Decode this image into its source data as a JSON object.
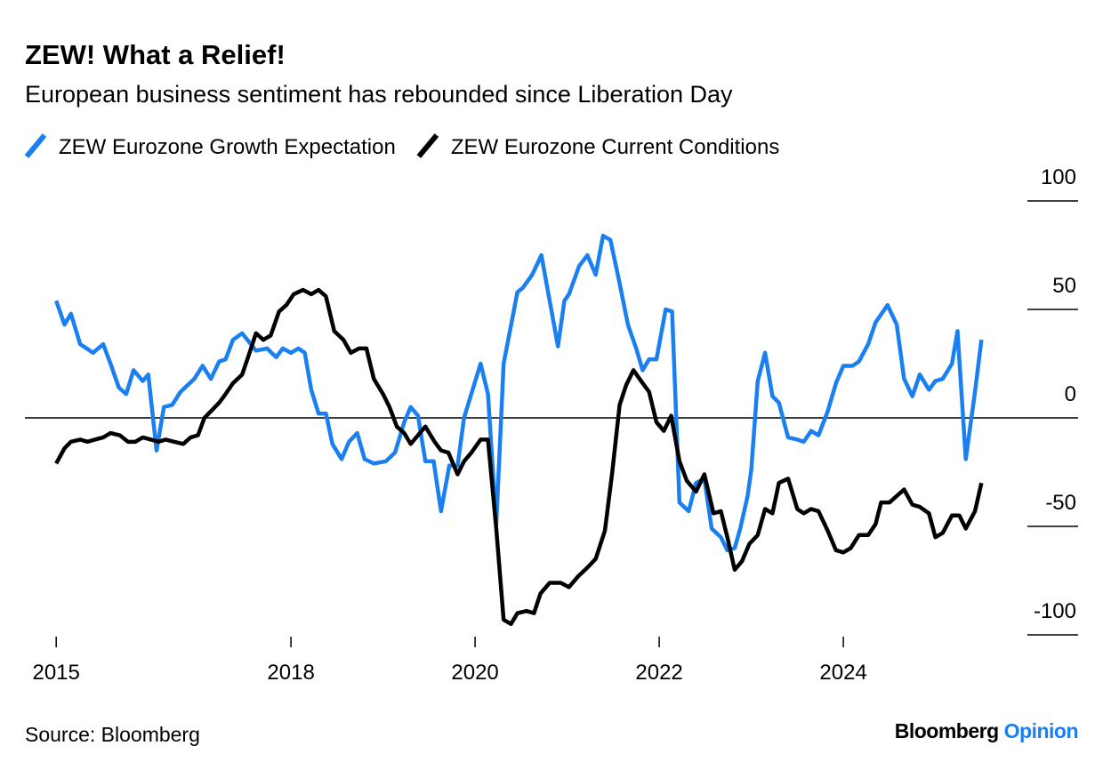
{
  "chart_data": {
    "type": "line",
    "title": "ZEW! What a Relief!",
    "subtitle": "European business sentiment has rebounded since Liberation Day",
    "source": "Source: Bloomberg",
    "brand": [
      "Bloomberg",
      "Opinion"
    ],
    "xlim": [
      2015.11,
      2026.55
    ],
    "xticks": [
      {
        "value": 2015.45,
        "label": "2015"
      },
      2018,
      2020,
      2022,
      2024
    ],
    "ylim": [
      -100,
      100
    ],
    "yticks": [
      -100,
      -50,
      0,
      50,
      100
    ],
    "grid": true,
    "series": [
      {
        "name": "ZEW Eurozone Growth Expectation",
        "color": "#1a7ff0",
        "x": [
          2015.45,
          2015.54,
          2015.61,
          2015.71,
          2015.85,
          2015.96,
          2016.04,
          2016.13,
          2016.21,
          2016.29,
          2016.39,
          2016.45,
          2016.54,
          2016.62,
          2016.71,
          2016.8,
          2016.95,
          2017.04,
          2017.13,
          2017.22,
          2017.29,
          2017.37,
          2017.47,
          2017.62,
          2017.74,
          2017.84,
          2017.91,
          2018.0,
          2018.08,
          2018.15,
          2018.22,
          2018.3,
          2018.38,
          2018.45,
          2018.55,
          2018.63,
          2018.72,
          2018.8,
          2018.9,
          2019.03,
          2019.13,
          2019.23,
          2019.3,
          2019.38,
          2019.46,
          2019.55,
          2019.63,
          2019.72,
          2019.81,
          2019.88,
          2019.98,
          2020.06,
          2020.14,
          2020.23,
          2020.31,
          2020.41,
          2020.46,
          2020.52,
          2020.62,
          2020.72,
          2020.9,
          2020.97,
          2021.02,
          2021.13,
          2021.22,
          2021.31,
          2021.39,
          2021.47,
          2021.57,
          2021.66,
          2021.75,
          2021.82,
          2021.89,
          2021.97,
          2022.07,
          2022.14,
          2022.22,
          2022.32,
          2022.4,
          2022.49,
          2022.57,
          2022.67,
          2022.74,
          2022.82,
          2022.88,
          2022.96,
          2023.0,
          2023.07,
          2023.15,
          2023.23,
          2023.3,
          2023.4,
          2023.5,
          2023.57,
          2023.65,
          2023.73,
          2023.83,
          2023.92,
          2024.0,
          2024.1,
          2024.17,
          2024.27,
          2024.35,
          2024.48,
          2024.58,
          2024.66,
          2024.75,
          2024.83,
          2024.93,
          2025.0,
          2025.08,
          2025.18,
          2025.24,
          2025.33,
          2025.43,
          2025.5
        ],
        "values": [
          54,
          43,
          48,
          34,
          30,
          34,
          25,
          14,
          11,
          22,
          17,
          20,
          -15,
          5,
          6,
          12,
          18,
          24,
          18,
          26,
          27,
          36,
          39,
          31,
          32,
          28,
          32,
          30,
          32,
          30,
          13,
          2,
          2,
          -12,
          -19,
          -11,
          -7,
          -19,
          -21,
          -20,
          -16,
          -2,
          5,
          1,
          -20,
          -20,
          -43,
          -22,
          -22,
          0,
          14,
          25,
          11,
          -49,
          25,
          47,
          58,
          60,
          66,
          75,
          33,
          54,
          57,
          70,
          75,
          66,
          84,
          82,
          62,
          43,
          32,
          22,
          27,
          27,
          50,
          49,
          -39,
          -43,
          -30,
          -28,
          -51,
          -55,
          -61,
          -60,
          -51,
          -36,
          -24,
          17,
          30,
          10,
          7,
          -9,
          -10,
          -11,
          -6,
          -8,
          3,
          16,
          24,
          24,
          26,
          34,
          44,
          52,
          43,
          18,
          10,
          20,
          13,
          17,
          18,
          25,
          40,
          -19,
          12,
          36
        ]
      },
      {
        "name": "ZEW Eurozone Current Conditions",
        "color": "#000000",
        "x": [
          2015.45,
          2015.54,
          2015.61,
          2015.71,
          2015.79,
          2015.87,
          2015.96,
          2016.04,
          2016.14,
          2016.23,
          2016.31,
          2016.39,
          2016.48,
          2016.56,
          2016.64,
          2016.73,
          2016.83,
          2016.91,
          2016.99,
          2017.06,
          2017.22,
          2017.29,
          2017.37,
          2017.47,
          2017.55,
          2017.62,
          2017.7,
          2017.78,
          2017.87,
          2017.95,
          2018.03,
          2018.13,
          2018.22,
          2018.3,
          2018.38,
          2018.47,
          2018.57,
          2018.65,
          2018.74,
          2018.82,
          2018.9,
          2019.0,
          2019.07,
          2019.15,
          2019.23,
          2019.3,
          2019.38,
          2019.46,
          2019.56,
          2019.63,
          2019.71,
          2019.81,
          2019.88,
          2019.96,
          2020.06,
          2020.14,
          2020.23,
          2020.31,
          2020.39,
          2020.46,
          2020.56,
          2020.64,
          2020.71,
          2020.81,
          2020.93,
          2021.02,
          2021.12,
          2021.22,
          2021.31,
          2021.41,
          2021.49,
          2021.57,
          2021.64,
          2021.72,
          2021.82,
          2021.89,
          2021.97,
          2022.05,
          2022.13,
          2022.22,
          2022.3,
          2022.4,
          2022.49,
          2022.59,
          2022.67,
          2022.74,
          2022.82,
          2022.9,
          2022.98,
          2023.07,
          2023.15,
          2023.23,
          2023.3,
          2023.4,
          2023.5,
          2023.57,
          2023.65,
          2023.73,
          2023.83,
          2023.92,
          2024.0,
          2024.08,
          2024.17,
          2024.27,
          2024.35,
          2024.41,
          2024.5,
          2024.58,
          2024.66,
          2024.75,
          2024.83,
          2024.93,
          2025.0,
          2025.08,
          2025.18,
          2025.26,
          2025.33,
          2025.43,
          2025.5
        ],
        "values": [
          -21,
          -14,
          -11,
          -10,
          -11,
          -10,
          -9,
          -7,
          -8,
          -11,
          -11,
          -9,
          -10,
          -11,
          -10,
          -11,
          -12,
          -9,
          -8,
          0,
          7,
          11,
          16,
          20,
          30,
          39,
          36,
          38,
          49,
          52,
          57,
          59,
          57,
          59,
          56,
          40,
          36,
          30,
          32,
          32,
          18,
          11,
          5,
          -4,
          -7,
          -12,
          -8,
          -4,
          -11,
          -15,
          -16,
          -26,
          -20,
          -16,
          -10,
          -10,
          -51,
          -93,
          -95,
          -90,
          -89,
          -90,
          -81,
          -76,
          -76,
          -78,
          -73,
          -69,
          -65,
          -52,
          -25,
          6,
          15,
          22,
          16,
          12,
          -2,
          -6,
          1,
          -20,
          -29,
          -34,
          -26,
          -44,
          -43,
          -55,
          -70,
          -66,
          -58,
          -54,
          -42,
          -44,
          -30,
          -28,
          -42,
          -44,
          -42,
          -43,
          -52,
          -61,
          -62,
          -60,
          -54,
          -54,
          -49,
          -39,
          -39,
          -36,
          -33,
          -40,
          -41,
          -44,
          -55,
          -53,
          -45,
          -45,
          -51,
          -43,
          -30
        ]
      }
    ]
  }
}
